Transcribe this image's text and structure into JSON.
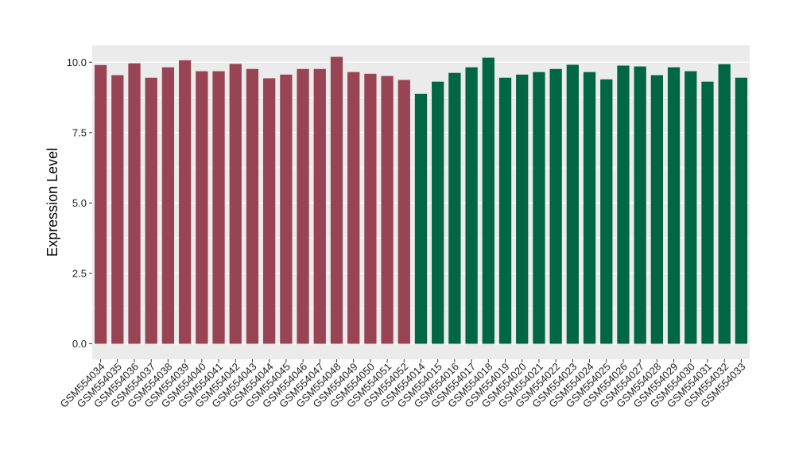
{
  "chart_data": {
    "type": "bar",
    "ylabel": "Expression Level",
    "xlabel": "",
    "ylim": [
      -0.55,
      10.6
    ],
    "yticks": [
      0.0,
      2.5,
      5.0,
      7.5,
      10.0
    ],
    "ytick_labels": [
      "0.0",
      "2.5",
      "5.0",
      "7.5",
      "10.0"
    ],
    "grid": true,
    "colors": {
      "group1": "#994455",
      "group2": "#006644",
      "panel": "#ebebeb",
      "grid": "#ffffff"
    },
    "categories": [
      "GSM554034",
      "GSM554035",
      "GSM554036",
      "GSM554037",
      "GSM554038",
      "GSM554039",
      "GSM554040",
      "GSM554041",
      "GSM554042",
      "GSM554043",
      "GSM554044",
      "GSM554045",
      "GSM554046",
      "GSM554047",
      "GSM554048",
      "GSM554049",
      "GSM554050",
      "GSM554051",
      "GSM554052",
      "GSM554014",
      "GSM554015",
      "GSM554016",
      "GSM554017",
      "GSM554018",
      "GSM554019",
      "GSM554020",
      "GSM554021",
      "GSM554022",
      "GSM554023",
      "GSM554024",
      "GSM554025",
      "GSM554026",
      "GSM554027",
      "GSM554028",
      "GSM554029",
      "GSM554030",
      "GSM554031",
      "GSM554032",
      "GSM554033"
    ],
    "values": [
      9.9,
      9.54,
      9.96,
      9.45,
      9.82,
      10.07,
      9.68,
      9.68,
      9.94,
      9.76,
      9.43,
      9.56,
      9.76,
      9.76,
      10.19,
      9.65,
      9.59,
      9.51,
      9.37,
      8.88,
      9.31,
      9.62,
      9.82,
      10.16,
      9.45,
      9.56,
      9.65,
      9.76,
      9.91,
      9.65,
      9.39,
      9.88,
      9.85,
      9.54,
      9.82,
      9.68,
      9.31,
      9.93,
      9.45
    ],
    "groups": [
      "group1",
      "group1",
      "group1",
      "group1",
      "group1",
      "group1",
      "group1",
      "group1",
      "group1",
      "group1",
      "group1",
      "group1",
      "group1",
      "group1",
      "group1",
      "group1",
      "group1",
      "group1",
      "group1",
      "group2",
      "group2",
      "group2",
      "group2",
      "group2",
      "group2",
      "group2",
      "group2",
      "group2",
      "group2",
      "group2",
      "group2",
      "group2",
      "group2",
      "group2",
      "group2",
      "group2",
      "group2",
      "group2",
      "group2"
    ]
  }
}
